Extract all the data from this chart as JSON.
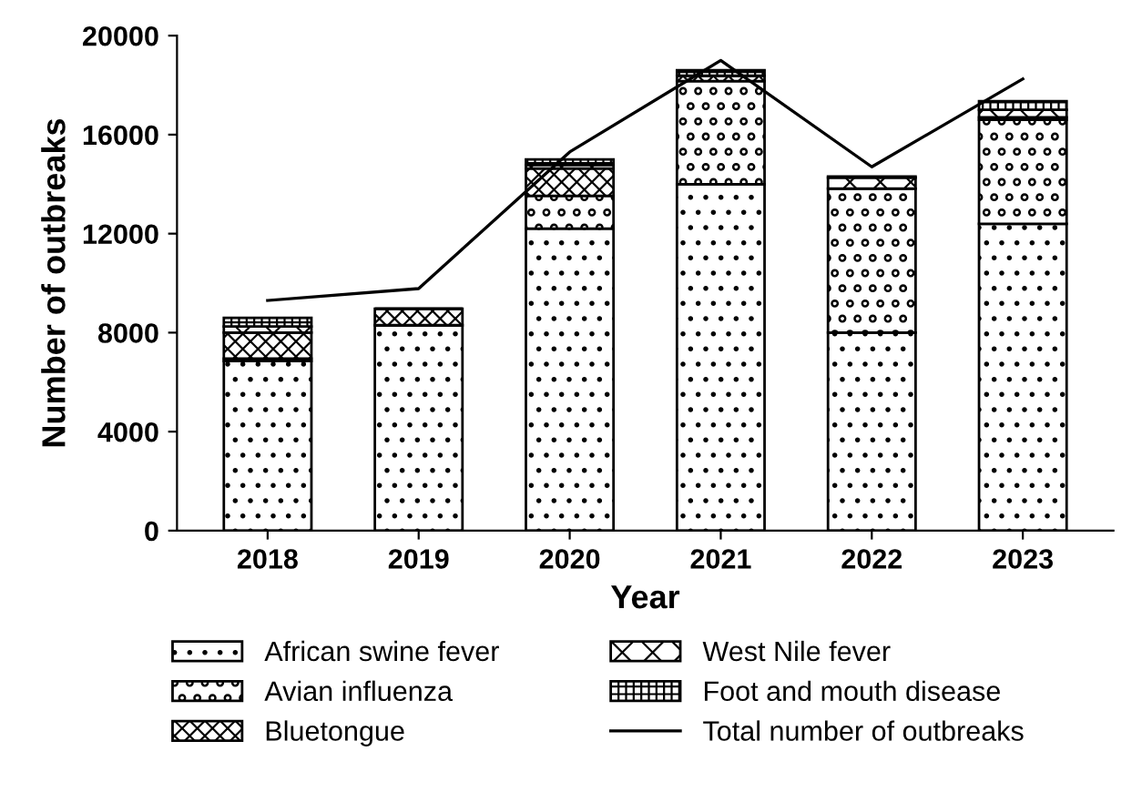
{
  "chart_data": {
    "type": "bar",
    "stacked": true,
    "xlabel": "Year",
    "ylabel": "Number of outbreaks",
    "categories": [
      "2018",
      "2019",
      "2020",
      "2021",
      "2022",
      "2023"
    ],
    "ylim": [
      0,
      20000
    ],
    "yticks": [
      0,
      4000,
      8000,
      12000,
      16000,
      20000
    ],
    "grid": false,
    "legend": "bottom",
    "series": [
      {
        "name": "African swine fever",
        "color": "#000000",
        "values": [
          6850,
          8300,
          12200,
          14000,
          8000,
          12400
        ]
      },
      {
        "name": "Avian influenza",
        "color": "#000000",
        "values": [
          100,
          null,
          1330,
          4160,
          5820,
          4200
        ]
      },
      {
        "name": "Bluetongue",
        "color": "#000000",
        "values": [
          1050,
          670,
          1100,
          220,
          null,
          100
        ]
      },
      {
        "name": "West Nile fever",
        "color": "#000000",
        "values": [
          250,
          null,
          150,
          null,
          440,
          300
        ]
      },
      {
        "name": "Foot and mouth disease",
        "color": "#000000",
        "values": [
          350,
          null,
          220,
          220,
          50,
          350
        ]
      },
      {
        "name": "Total number of outbreaks",
        "type": "line",
        "color": "#000000",
        "marker": "none",
        "values": [
          9300,
          9780,
          15300,
          19000,
          14700,
          18250
        ]
      }
    ]
  }
}
